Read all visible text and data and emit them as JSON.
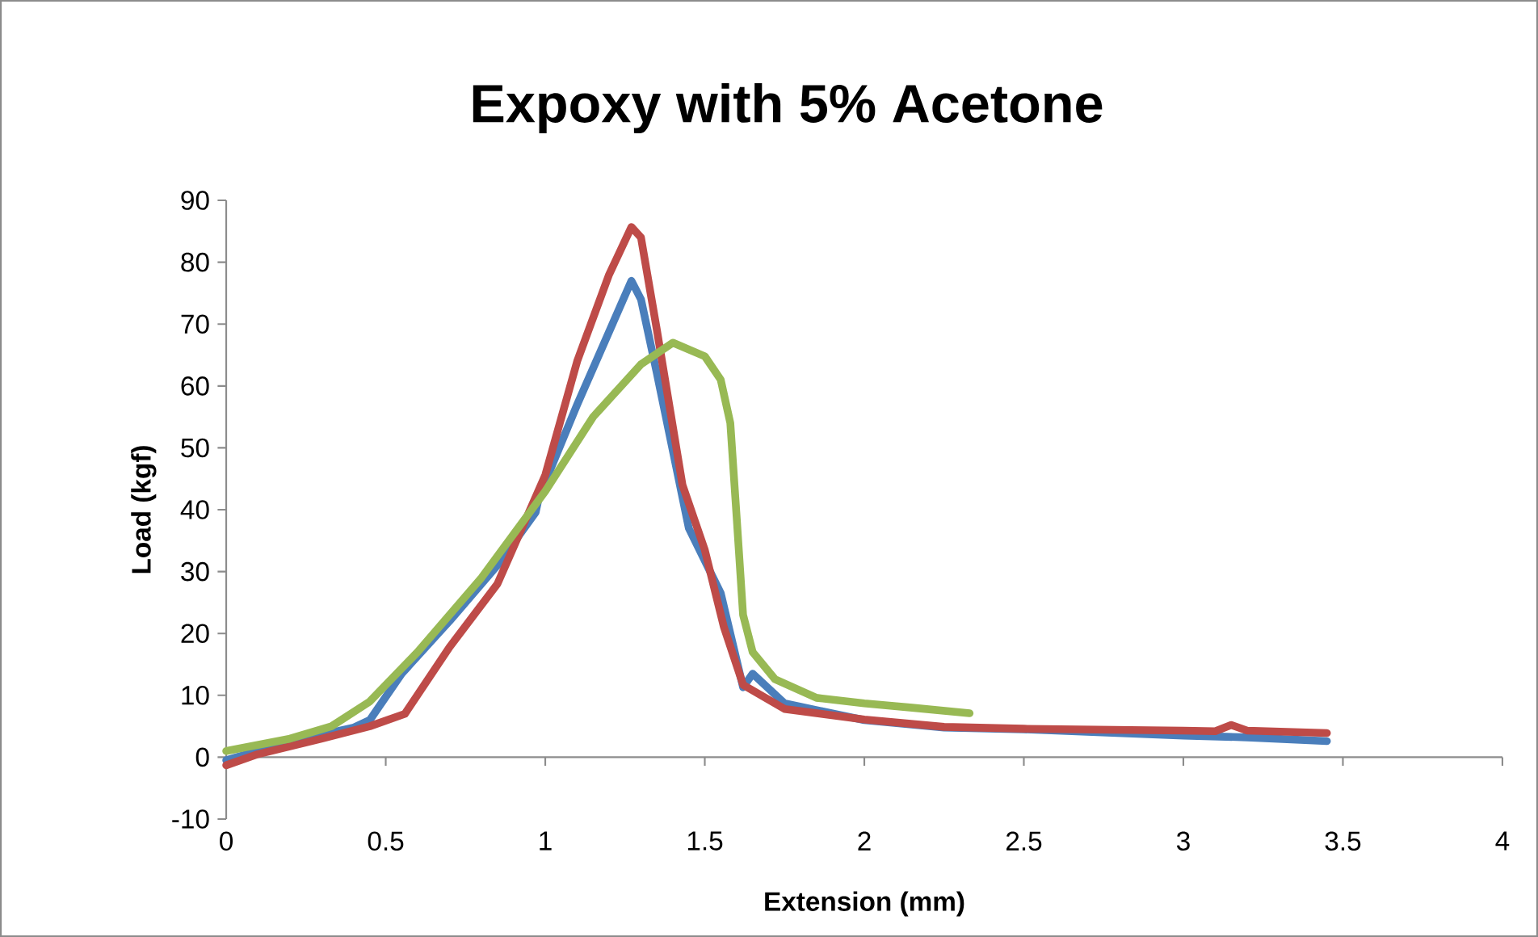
{
  "chart_data": {
    "type": "line",
    "title": "Expoxy with 5% Acetone",
    "xlabel": "Extension (mm)",
    "ylabel": "Load  (kgf)",
    "xlim": [
      0,
      4
    ],
    "xticks": [
      0,
      0.5,
      1,
      1.5,
      2,
      2.5,
      3,
      3.5,
      4
    ],
    "ylim": [
      -10,
      90
    ],
    "yticks": [
      -10,
      0,
      10,
      20,
      30,
      40,
      50,
      60,
      70,
      80,
      90
    ],
    "legend": false,
    "marker": "none",
    "line_style": "solid",
    "series": [
      {
        "color": "#4a7ebb",
        "x": [
          0,
          0.2,
          0.4,
          0.45,
          0.55,
          0.7,
          0.85,
          0.97,
          0.98,
          1.1,
          1.27,
          1.3,
          1.35,
          1.45,
          1.55,
          1.62,
          1.65,
          1.75,
          2.0,
          2.25,
          2.5,
          3.0,
          3.2,
          3.45
        ],
        "values": [
          -0.5,
          2.5,
          4.8,
          6,
          13.5,
          22,
          31,
          39.6,
          42,
          57,
          77,
          74,
          62,
          37,
          26.5,
          11.3,
          13.5,
          8.7,
          6,
          4.8,
          4.5,
          3.5,
          3.2,
          2.6
        ]
      },
      {
        "color": "#be4b48",
        "x": [
          0,
          0.1,
          0.3,
          0.45,
          0.56,
          0.7,
          0.85,
          1.0,
          1.1,
          1.2,
          1.27,
          1.3,
          1.35,
          1.43,
          1.5,
          1.56,
          1.62,
          1.75,
          2.0,
          2.25,
          2.5,
          3.0,
          3.1,
          3.15,
          3.2,
          3.45
        ],
        "values": [
          -1.3,
          0.5,
          3,
          5,
          7,
          17.8,
          28,
          45.6,
          64,
          78,
          85.7,
          84,
          69,
          44,
          33.5,
          21,
          11.7,
          7.8,
          6.1,
          4.9,
          4.6,
          4.3,
          4.2,
          5.2,
          4.3,
          3.9
        ]
      },
      {
        "color": "#98b954",
        "x": [
          0,
          0.2,
          0.33,
          0.45,
          0.6,
          0.8,
          1.0,
          1.15,
          1.3,
          1.4,
          1.5,
          1.55,
          1.58,
          1.6,
          1.62,
          1.65,
          1.72,
          1.85,
          2.0,
          2.15,
          2.33
        ],
        "values": [
          1,
          3,
          5,
          9,
          17,
          29,
          43,
          55,
          63.5,
          67,
          64.8,
          61,
          54,
          38.7,
          23,
          17,
          12.6,
          9.6,
          8.7,
          8,
          7.1
        ]
      }
    ]
  }
}
